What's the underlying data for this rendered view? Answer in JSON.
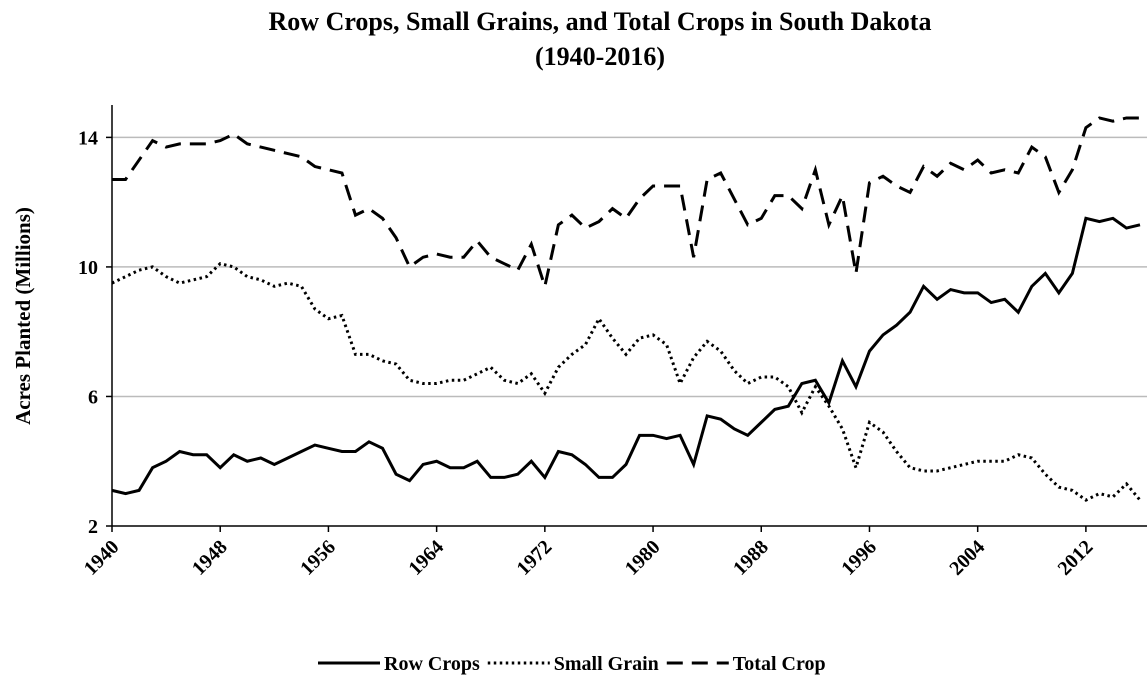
{
  "chart_data": {
    "type": "line",
    "title": "Row Crops, Small Grains, and Total Crops in South Dakota",
    "subtitle": "(1940-2016)",
    "y_label": "Acres Planted (Millions)",
    "x": [
      1940,
      1941,
      1942,
      1943,
      1944,
      1945,
      1946,
      1947,
      1948,
      1949,
      1950,
      1951,
      1952,
      1953,
      1954,
      1955,
      1956,
      1957,
      1958,
      1959,
      1960,
      1961,
      1962,
      1963,
      1964,
      1965,
      1966,
      1967,
      1968,
      1969,
      1970,
      1971,
      1972,
      1973,
      1974,
      1975,
      1976,
      1977,
      1978,
      1979,
      1980,
      1981,
      1982,
      1983,
      1984,
      1985,
      1986,
      1987,
      1988,
      1989,
      1990,
      1991,
      1992,
      1993,
      1994,
      1995,
      1996,
      1997,
      1998,
      1999,
      2000,
      2001,
      2002,
      2003,
      2004,
      2005,
      2006,
      2007,
      2008,
      2009,
      2010,
      2011,
      2012,
      2013,
      2014,
      2015,
      2016
    ],
    "series": [
      {
        "name": "Row Crops",
        "color": "#000000",
        "style": "solid",
        "values": [
          3.1,
          3.0,
          3.1,
          3.8,
          4.0,
          4.3,
          4.2,
          4.2,
          3.8,
          4.2,
          4.0,
          4.1,
          3.9,
          4.1,
          4.3,
          4.5,
          4.4,
          4.3,
          4.3,
          4.6,
          4.4,
          3.6,
          3.4,
          3.9,
          4.0,
          3.8,
          3.8,
          4.0,
          3.5,
          3.5,
          3.6,
          4.0,
          3.5,
          4.3,
          4.2,
          3.9,
          3.5,
          3.5,
          3.9,
          4.8,
          4.8,
          4.7,
          4.8,
          3.9,
          5.4,
          5.3,
          5.0,
          4.8,
          5.2,
          5.6,
          5.7,
          6.4,
          6.5,
          5.8,
          7.1,
          6.3,
          7.4,
          7.9,
          8.2,
          8.6,
          9.4,
          9.0,
          9.3,
          9.2,
          9.2,
          8.9,
          9.0,
          8.6,
          9.4,
          9.8,
          9.2,
          9.8,
          11.5,
          11.4,
          11.5,
          11.2,
          11.3
        ]
      },
      {
        "name": "Small Grain",
        "color": "#000000",
        "style": "dotted",
        "values": [
          9.5,
          9.7,
          9.9,
          10.0,
          9.7,
          9.5,
          9.6,
          9.7,
          10.1,
          10.0,
          9.7,
          9.6,
          9.4,
          9.5,
          9.4,
          8.7,
          8.4,
          8.5,
          7.3,
          7.3,
          7.1,
          7.0,
          6.5,
          6.4,
          6.4,
          6.5,
          6.5,
          6.7,
          6.9,
          6.5,
          6.4,
          6.7,
          6.1,
          6.9,
          7.3,
          7.6,
          8.4,
          7.8,
          7.3,
          7.8,
          7.9,
          7.6,
          6.4,
          7.2,
          7.7,
          7.4,
          6.8,
          6.4,
          6.6,
          6.6,
          6.3,
          5.5,
          6.3,
          5.7,
          5.0,
          3.8,
          5.2,
          4.9,
          4.3,
          3.8,
          3.7,
          3.7,
          3.8,
          3.9,
          4.0,
          4.0,
          4.0,
          4.2,
          4.1,
          3.6,
          3.2,
          3.1,
          2.8,
          3.0,
          2.9,
          3.3,
          2.8
        ]
      },
      {
        "name": "Total Crop",
        "color": "#000000",
        "style": "dashed",
        "values": [
          12.7,
          12.7,
          13.3,
          13.9,
          13.7,
          13.8,
          13.8,
          13.8,
          13.9,
          14.1,
          13.8,
          13.7,
          13.6,
          13.5,
          13.4,
          13.1,
          13.0,
          12.9,
          11.6,
          11.8,
          11.5,
          10.9,
          10.0,
          10.3,
          10.4,
          10.3,
          10.3,
          10.8,
          10.3,
          10.1,
          9.9,
          10.7,
          9.4,
          11.3,
          11.6,
          11.2,
          11.4,
          11.8,
          11.5,
          12.1,
          12.5,
          12.5,
          12.5,
          10.3,
          12.7,
          12.9,
          12.1,
          11.3,
          11.5,
          12.2,
          12.2,
          11.8,
          13.0,
          11.3,
          12.2,
          9.8,
          12.6,
          12.8,
          12.5,
          12.3,
          13.1,
          12.8,
          13.2,
          13.0,
          13.3,
          12.9,
          13.0,
          12.9,
          13.7,
          13.4,
          12.3,
          13.0,
          14.3,
          14.6,
          14.5,
          14.6,
          14.6
        ]
      }
    ],
    "xlim": [
      1940,
      2016
    ],
    "xticks": [
      1940,
      1948,
      1956,
      1964,
      1972,
      1980,
      1988,
      1996,
      2004,
      2012
    ],
    "ylim": [
      2,
      15
    ],
    "yticks": [
      2,
      6,
      10,
      14
    ],
    "grid": true,
    "legend": "bottom"
  }
}
